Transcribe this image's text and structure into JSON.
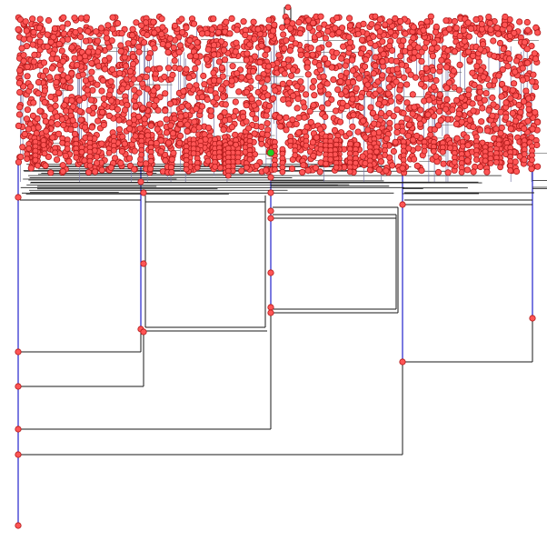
{
  "colors": {
    "background": "#ffffff",
    "edge_horizontal": "#1a1a1a",
    "edge_vertical": "#2222cc",
    "node_fill": "#ff5555",
    "node_stroke": "#b01a1a",
    "selected_node": "#22cc22"
  },
  "visible_nodes": [
    {
      "id": "root-bottom",
      "x_rank": 0,
      "depth": 17
    },
    {
      "id": "n-500",
      "x_rank": 0,
      "depth": 14.7
    },
    {
      "id": "n-472",
      "x_rank": 0,
      "depth": 13.6
    },
    {
      "id": "n-425",
      "x_rank": 0,
      "depth": 12.1
    },
    {
      "id": "n-387",
      "x_rank": 0,
      "depth": 10.8
    },
    {
      "id": "branch-a",
      "x_rank": 1,
      "depth": 9.6
    },
    {
      "id": "branch-b",
      "x_rank": 2,
      "depth": 8.4
    },
    {
      "id": "branch-c",
      "x_rank": 3,
      "depth": 10.2
    },
    {
      "id": "branch-d",
      "x_rank": 4,
      "depth": 9.2
    }
  ]
}
